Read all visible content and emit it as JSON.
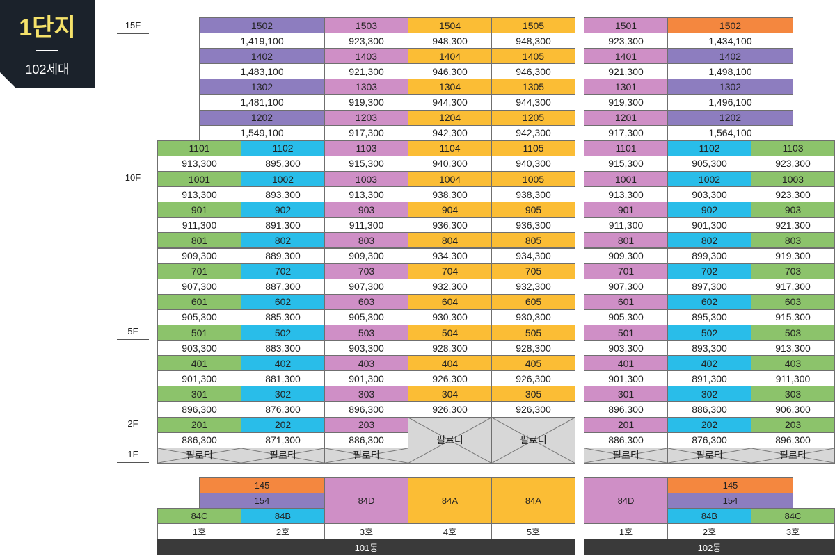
{
  "badge": {
    "title": "1단지",
    "subtitle": "102세대"
  },
  "floors": {
    "f15": "15F",
    "f10": "10F",
    "f5": "5F",
    "f2": "2F",
    "f1": "1F"
  },
  "pilotis": "필로티",
  "colors": {
    "orange": "#f4873f",
    "pink": "#cf8fc6",
    "yellow": "#fbbd35",
    "violet": "#8d7dbf",
    "green": "#8cc36b",
    "blue": "#29bde9"
  },
  "b101": {
    "upper": [
      {
        "a": "1502",
        "ap": "1,419,100",
        "b": "1503",
        "bp": "923,300",
        "c": "1504",
        "cp": "948,300",
        "d": "1505",
        "dp": "948,300"
      },
      {
        "a": "1402",
        "ap": "1,483,100",
        "b": "1403",
        "bp": "921,300",
        "c": "1404",
        "cp": "946,300",
        "d": "1405",
        "dp": "946,300"
      },
      {
        "a": "1302",
        "ap": "1,481,100",
        "b": "1303",
        "bp": "919,300",
        "c": "1304",
        "cp": "944,300",
        "d": "1305",
        "dp": "944,300"
      },
      {
        "a": "1202",
        "ap": "1,549,100",
        "b": "1203",
        "bp": "917,300",
        "c": "1204",
        "cp": "942,300",
        "d": "1205",
        "dp": "942,300"
      }
    ],
    "rows": [
      [
        [
          "1101",
          "913,300"
        ],
        [
          "1102",
          "895,300"
        ],
        [
          "1103",
          "915,300"
        ],
        [
          "1104",
          "940,300"
        ],
        [
          "1105",
          "940,300"
        ]
      ],
      [
        [
          "1001",
          "913,300"
        ],
        [
          "1002",
          "893,300"
        ],
        [
          "1003",
          "913,300"
        ],
        [
          "1004",
          "938,300"
        ],
        [
          "1005",
          "938,300"
        ]
      ],
      [
        [
          "901",
          "911,300"
        ],
        [
          "902",
          "891,300"
        ],
        [
          "903",
          "911,300"
        ],
        [
          "904",
          "936,300"
        ],
        [
          "905",
          "936,300"
        ]
      ],
      [
        [
          "801",
          "909,300"
        ],
        [
          "802",
          "889,300"
        ],
        [
          "803",
          "909,300"
        ],
        [
          "804",
          "934,300"
        ],
        [
          "805",
          "934,300"
        ]
      ],
      [
        [
          "701",
          "907,300"
        ],
        [
          "702",
          "887,300"
        ],
        [
          "703",
          "907,300"
        ],
        [
          "704",
          "932,300"
        ],
        [
          "705",
          "932,300"
        ]
      ],
      [
        [
          "601",
          "905,300"
        ],
        [
          "602",
          "885,300"
        ],
        [
          "603",
          "905,300"
        ],
        [
          "604",
          "930,300"
        ],
        [
          "605",
          "930,300"
        ]
      ],
      [
        [
          "501",
          "903,300"
        ],
        [
          "502",
          "883,300"
        ],
        [
          "503",
          "903,300"
        ],
        [
          "504",
          "928,300"
        ],
        [
          "505",
          "928,300"
        ]
      ],
      [
        [
          "401",
          "901,300"
        ],
        [
          "402",
          "881,300"
        ],
        [
          "403",
          "901,300"
        ],
        [
          "404",
          "926,300"
        ],
        [
          "405",
          "926,300"
        ]
      ],
      [
        [
          "301",
          "896,300"
        ],
        [
          "302",
          "876,300"
        ],
        [
          "303",
          "896,300"
        ],
        [
          "304",
          "926,300"
        ],
        [
          "305",
          "926,300"
        ]
      ],
      [
        [
          "201",
          "886,300"
        ],
        [
          "202",
          "871,300"
        ],
        [
          "203",
          "886,300"
        ]
      ]
    ],
    "legend": {
      "t145": "145",
      "t154": "154",
      "t84D": "84D",
      "t84A1": "84A",
      "t84A2": "84A",
      "t84C": "84C",
      "t84B": "84B"
    },
    "units": [
      "1호",
      "2호",
      "3호",
      "4호",
      "5호"
    ],
    "name": "101동"
  },
  "b102": {
    "upper": [
      {
        "a": "1501",
        "ap": "923,300",
        "b": "1502",
        "bp": "1,434,100"
      },
      {
        "a": "1401",
        "ap": "921,300",
        "b": "1402",
        "bp": "1,498,100"
      },
      {
        "a": "1301",
        "ap": "919,300",
        "b": "1302",
        "bp": "1,496,100"
      },
      {
        "a": "1201",
        "ap": "917,300",
        "b": "1202",
        "bp": "1,564,100"
      }
    ],
    "rows": [
      [
        [
          "1101",
          "915,300"
        ],
        [
          "1102",
          "905,300"
        ],
        [
          "1103",
          "923,300"
        ]
      ],
      [
        [
          "1001",
          "913,300"
        ],
        [
          "1002",
          "903,300"
        ],
        [
          "1003",
          "923,300"
        ]
      ],
      [
        [
          "901",
          "911,300"
        ],
        [
          "902",
          "901,300"
        ],
        [
          "903",
          "921,300"
        ]
      ],
      [
        [
          "801",
          "909,300"
        ],
        [
          "802",
          "899,300"
        ],
        [
          "803",
          "919,300"
        ]
      ],
      [
        [
          "701",
          "907,300"
        ],
        [
          "702",
          "897,300"
        ],
        [
          "703",
          "917,300"
        ]
      ],
      [
        [
          "601",
          "905,300"
        ],
        [
          "602",
          "895,300"
        ],
        [
          "603",
          "915,300"
        ]
      ],
      [
        [
          "501",
          "903,300"
        ],
        [
          "502",
          "893,300"
        ],
        [
          "503",
          "913,300"
        ]
      ],
      [
        [
          "401",
          "901,300"
        ],
        [
          "402",
          "891,300"
        ],
        [
          "403",
          "911,300"
        ]
      ],
      [
        [
          "301",
          "896,300"
        ],
        [
          "302",
          "886,300"
        ],
        [
          "303",
          "906,300"
        ]
      ],
      [
        [
          "201",
          "886,300"
        ],
        [
          "202",
          "876,300"
        ],
        [
          "203",
          "896,300"
        ]
      ]
    ],
    "legend": {
      "t84D": "84D",
      "t145": "145",
      "t154": "154",
      "t84B": "84B",
      "t84C": "84C"
    },
    "units": [
      "1호",
      "2호",
      "3호"
    ],
    "name": "102동"
  }
}
